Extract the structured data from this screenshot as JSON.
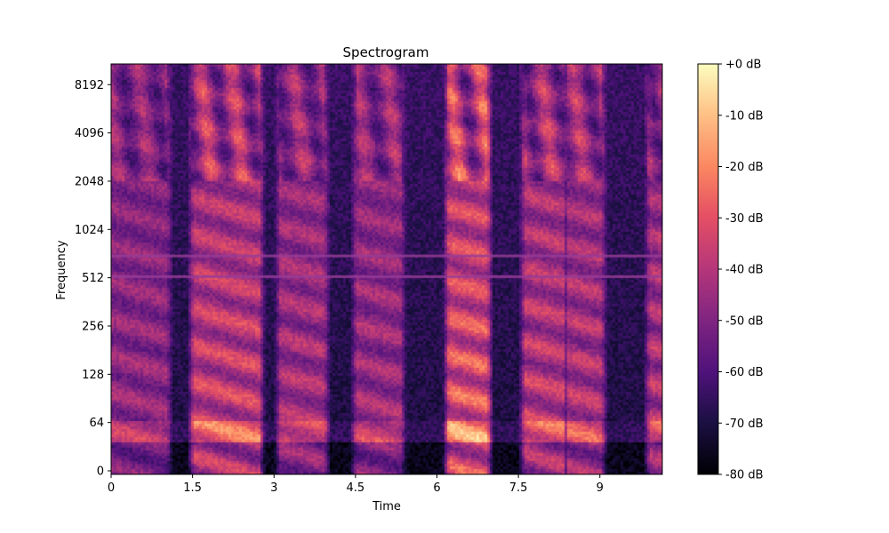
{
  "chart_data": {
    "type": "heatmap",
    "title": "Spectrogram",
    "xlabel": "Time",
    "ylabel": "Frequency",
    "x_ticks": [
      0,
      1.5,
      3,
      4.5,
      6,
      7.5,
      9
    ],
    "x_tick_labels": [
      "0",
      "1.5",
      "3",
      "4.5",
      "6",
      "7.5",
      "9"
    ],
    "xlim": [
      0,
      10.15
    ],
    "y_scale": "symlog",
    "y_ticks": [
      0,
      64,
      128,
      256,
      512,
      1024,
      2048,
      4096,
      8192
    ],
    "y_tick_labels": [
      "0",
      "64",
      "128",
      "256",
      "512",
      "1024",
      "2048",
      "4096",
      "8192"
    ],
    "ylim": [
      0,
      11025
    ],
    "colormap": "magma",
    "colorbar": {
      "ticks": [
        0,
        -10,
        -20,
        -30,
        -40,
        -50,
        -60,
        -70,
        -80
      ],
      "tick_labels": [
        "+0 dB",
        "-10 dB",
        "-20 dB",
        "-30 dB",
        "-40 dB",
        "-50 dB",
        "-60 dB",
        "-70 dB",
        "-80 dB"
      ],
      "range": [
        -80,
        0
      ]
    },
    "segments": [
      {
        "start": 0.0,
        "end": 1.0,
        "level": 0.55
      },
      {
        "start": 1.5,
        "end": 2.7,
        "level": 0.8
      },
      {
        "start": 3.1,
        "end": 3.9,
        "level": 0.65
      },
      {
        "start": 4.5,
        "end": 5.3,
        "level": 0.6
      },
      {
        "start": 6.2,
        "end": 6.9,
        "level": 0.95
      },
      {
        "start": 7.6,
        "end": 8.3,
        "level": 0.75
      },
      {
        "start": 8.4,
        "end": 9.0,
        "level": 0.7
      },
      {
        "start": 9.9,
        "end": 10.15,
        "level": 0.7
      }
    ],
    "tonal_lines_hz": [
      520,
      700
    ]
  },
  "colors": {
    "background": "#ffffff",
    "plot_background": "#000004"
  }
}
